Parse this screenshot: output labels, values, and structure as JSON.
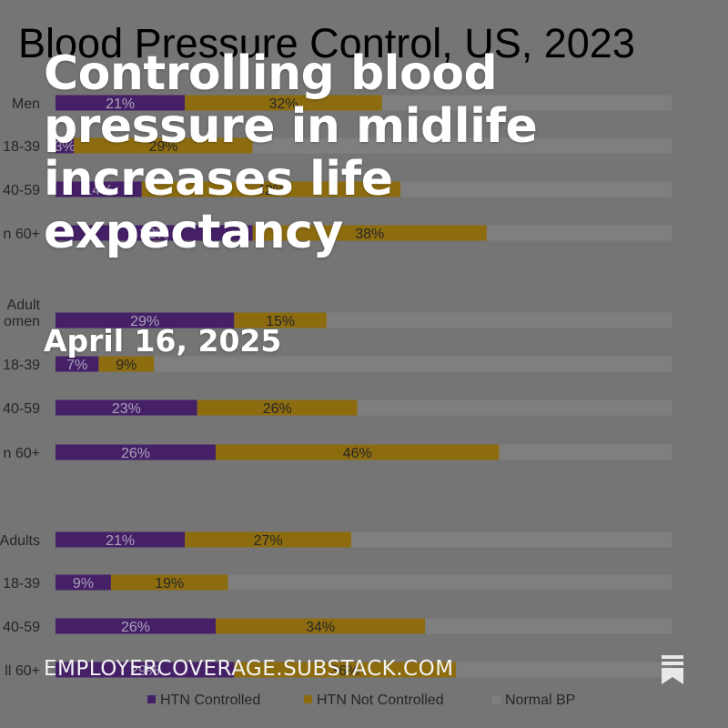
{
  "post": {
    "title": "Controlling blood pressure in midlife increases life expectancy",
    "date": "April 16, 2025",
    "site": "EMPLOYERCOVERAGE.SUBSTACK.COM"
  },
  "icons": {
    "bookmark": "bookmark-icon"
  },
  "colors": {
    "background": "#7f7f7f",
    "track": "#8a8a8a",
    "controlled": "#4b2370",
    "not_controlled": "#9a7612",
    "normal": "#8a8a8a",
    "text": "#2a2a2a",
    "on_dark_text": "#b9b0c8"
  },
  "chart_data": {
    "type": "bar",
    "orientation": "horizontal",
    "stacked": true,
    "title": "Blood Pressure Control, US, 2023",
    "xlim": [
      0,
      100
    ],
    "categories": [
      "Men",
      "18-39",
      "40-59",
      "n 60+",
      "Adult\nomen",
      "18-39",
      "40-59",
      "n 60+",
      "Adults",
      "18-39",
      "40-59",
      "ll 60+"
    ],
    "series": [
      {
        "name": "HTN Controlled",
        "values": [
          21,
          3,
          14,
          32,
          29,
          7,
          23,
          26,
          21,
          9,
          26,
          29
        ],
        "labels": [
          "21%",
          "3%",
          "14%",
          "32%",
          "29%",
          "7%",
          "23%",
          "26%",
          "21%",
          "9%",
          "26%",
          "29%"
        ]
      },
      {
        "name": "HTN Not Controlled",
        "values": [
          32,
          29,
          42,
          38,
          15,
          9,
          26,
          46,
          27,
          19,
          34,
          36
        ],
        "labels": [
          "32%",
          "29%",
          "42%",
          "38%",
          "15%",
          "9%",
          "26%",
          "46%",
          "27%",
          "19%",
          "34%",
          "36%"
        ]
      },
      {
        "name": "Normal BP",
        "values": [
          47,
          68,
          44,
          30,
          56,
          84,
          51,
          28,
          52,
          72,
          40,
          35
        ],
        "labels": [
          "",
          "",
          "",
          "",
          "",
          "",
          "",
          "",
          "",
          "",
          "",
          ""
        ]
      }
    ],
    "legend": "bottom"
  }
}
